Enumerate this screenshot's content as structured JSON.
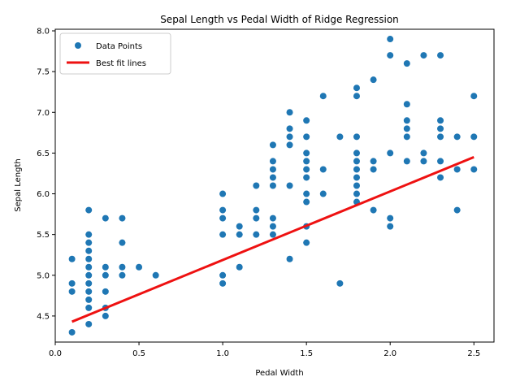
{
  "chart_data": {
    "type": "scatter",
    "title": "Sepal Length vs Pedal Width of Ridge Regression",
    "xlabel": "Pedal Width",
    "ylabel": "Sepal Length",
    "xlim": [
      0.0,
      2.62
    ],
    "ylim": [
      4.18,
      8.02
    ],
    "xticks": [
      "0.0",
      "0.5",
      "1.0",
      "1.5",
      "2.0",
      "2.5"
    ],
    "yticks": [
      "4.5",
      "5.0",
      "5.5",
      "6.0",
      "6.5",
      "7.0",
      "7.5",
      "8.0"
    ],
    "grid": false,
    "legend_position": "top-left",
    "legend": [
      {
        "label": "Data Points",
        "kind": "marker"
      },
      {
        "label": "Best fit lines",
        "kind": "line"
      }
    ],
    "colors": {
      "points": "#1f77b4",
      "fit": "#ee1111"
    },
    "series": [
      {
        "name": "Data Points",
        "points": [
          [
            0.1,
            5.2
          ],
          [
            0.1,
            4.9
          ],
          [
            0.1,
            4.8
          ],
          [
            0.1,
            4.3
          ],
          [
            0.2,
            5.8
          ],
          [
            0.2,
            5.5
          ],
          [
            0.2,
            5.4
          ],
          [
            0.2,
            5.3
          ],
          [
            0.2,
            5.2
          ],
          [
            0.2,
            5.1
          ],
          [
            0.2,
            5.0
          ],
          [
            0.2,
            4.9
          ],
          [
            0.2,
            4.8
          ],
          [
            0.2,
            4.7
          ],
          [
            0.2,
            4.6
          ],
          [
            0.2,
            4.4
          ],
          [
            0.3,
            5.7
          ],
          [
            0.3,
            5.1
          ],
          [
            0.3,
            5.0
          ],
          [
            0.3,
            4.8
          ],
          [
            0.3,
            4.6
          ],
          [
            0.3,
            4.5
          ],
          [
            0.4,
            5.7
          ],
          [
            0.4,
            5.4
          ],
          [
            0.4,
            5.1
          ],
          [
            0.4,
            5.0
          ],
          [
            0.5,
            5.1
          ],
          [
            0.6,
            5.0
          ],
          [
            1.0,
            6.0
          ],
          [
            1.0,
            5.8
          ],
          [
            1.0,
            5.7
          ],
          [
            1.0,
            5.5
          ],
          [
            1.0,
            5.0
          ],
          [
            1.0,
            4.9
          ],
          [
            1.1,
            5.6
          ],
          [
            1.1,
            5.5
          ],
          [
            1.1,
            5.1
          ],
          [
            1.2,
            6.1
          ],
          [
            1.2,
            5.8
          ],
          [
            1.2,
            5.7
          ],
          [
            1.2,
            5.5
          ],
          [
            1.3,
            6.6
          ],
          [
            1.3,
            6.4
          ],
          [
            1.3,
            6.3
          ],
          [
            1.3,
            6.2
          ],
          [
            1.3,
            6.1
          ],
          [
            1.3,
            5.7
          ],
          [
            1.3,
            5.6
          ],
          [
            1.3,
            5.5
          ],
          [
            1.4,
            7.0
          ],
          [
            1.4,
            6.8
          ],
          [
            1.4,
            6.7
          ],
          [
            1.4,
            6.6
          ],
          [
            1.4,
            6.1
          ],
          [
            1.4,
            5.2
          ],
          [
            1.5,
            6.9
          ],
          [
            1.5,
            6.7
          ],
          [
            1.5,
            6.5
          ],
          [
            1.5,
            6.4
          ],
          [
            1.5,
            6.3
          ],
          [
            1.5,
            6.2
          ],
          [
            1.5,
            6.0
          ],
          [
            1.5,
            5.9
          ],
          [
            1.5,
            5.6
          ],
          [
            1.5,
            5.4
          ],
          [
            1.6,
            7.2
          ],
          [
            1.6,
            6.3
          ],
          [
            1.6,
            6.0
          ],
          [
            1.7,
            6.7
          ],
          [
            1.7,
            4.9
          ],
          [
            1.8,
            7.3
          ],
          [
            1.8,
            7.2
          ],
          [
            1.8,
            6.7
          ],
          [
            1.8,
            6.5
          ],
          [
            1.8,
            6.4
          ],
          [
            1.8,
            6.3
          ],
          [
            1.8,
            6.2
          ],
          [
            1.8,
            6.1
          ],
          [
            1.8,
            6.0
          ],
          [
            1.8,
            5.9
          ],
          [
            1.9,
            7.4
          ],
          [
            1.9,
            6.4
          ],
          [
            1.9,
            6.3
          ],
          [
            1.9,
            5.8
          ],
          [
            2.0,
            7.9
          ],
          [
            2.0,
            7.7
          ],
          [
            2.0,
            6.5
          ],
          [
            2.0,
            5.7
          ],
          [
            2.0,
            5.6
          ],
          [
            2.1,
            7.6
          ],
          [
            2.1,
            7.1
          ],
          [
            2.1,
            6.9
          ],
          [
            2.1,
            6.8
          ],
          [
            2.1,
            6.7
          ],
          [
            2.1,
            6.4
          ],
          [
            2.2,
            7.7
          ],
          [
            2.2,
            6.5
          ],
          [
            2.2,
            6.4
          ],
          [
            2.3,
            7.7
          ],
          [
            2.3,
            6.9
          ],
          [
            2.3,
            6.8
          ],
          [
            2.3,
            6.7
          ],
          [
            2.3,
            6.4
          ],
          [
            2.3,
            6.2
          ],
          [
            2.4,
            6.7
          ],
          [
            2.4,
            6.3
          ],
          [
            2.4,
            5.8
          ],
          [
            2.5,
            7.2
          ],
          [
            2.5,
            6.7
          ],
          [
            2.5,
            6.3
          ]
        ]
      },
      {
        "name": "Best fit lines",
        "points": [
          [
            0.1,
            4.43
          ],
          [
            2.5,
            6.45
          ]
        ]
      }
    ]
  }
}
